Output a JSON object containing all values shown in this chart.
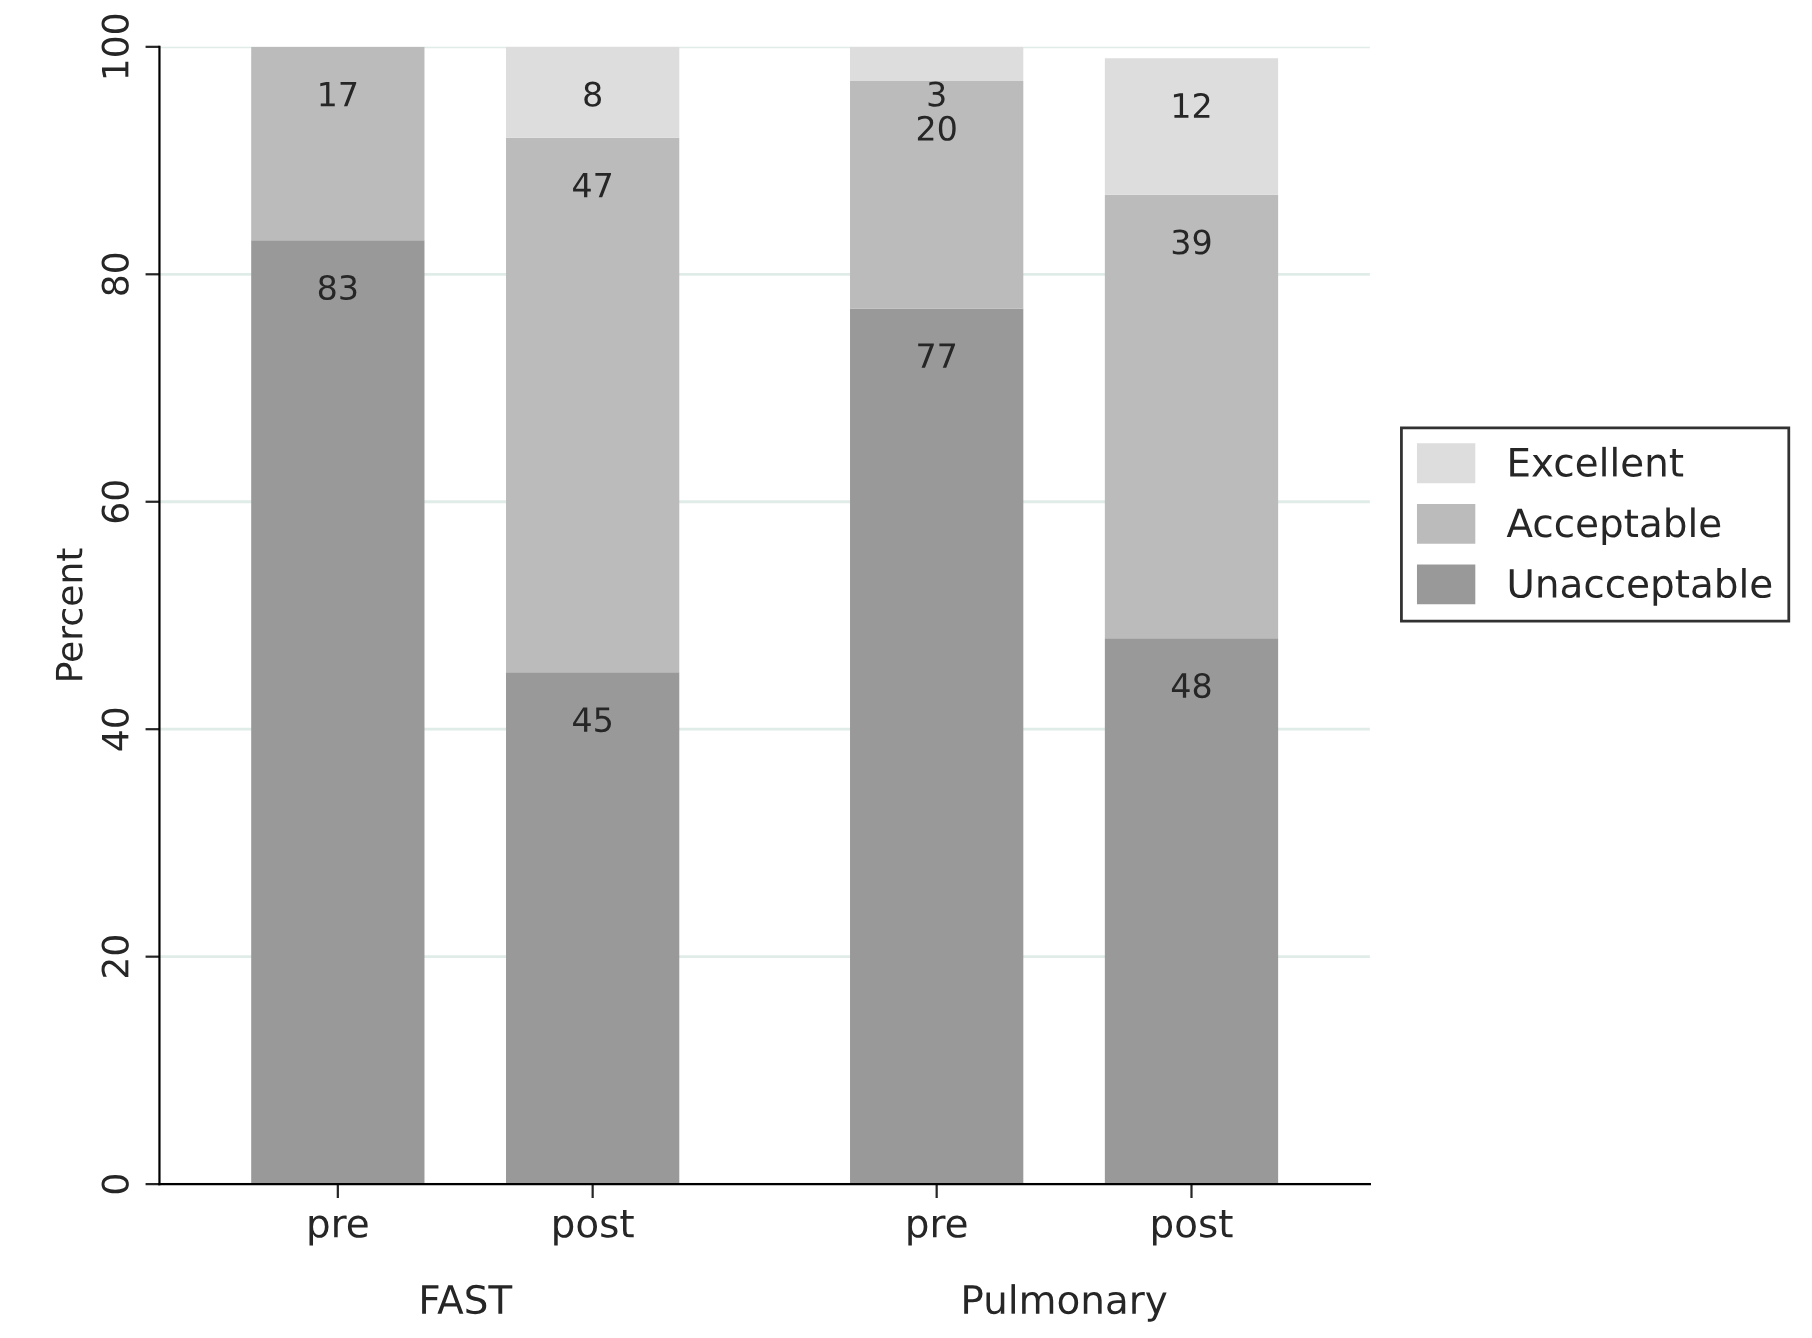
{
  "chart_data": {
    "type": "bar",
    "stacked": true,
    "ylabel": "Percent",
    "categories": [
      "pre",
      "post",
      "pre",
      "post"
    ],
    "series": [
      {
        "name": "Unacceptable",
        "color": "#999999",
        "values": [
          83,
          45,
          77,
          48
        ]
      },
      {
        "name": "Acceptable",
        "color": "#bbbbbb",
        "values": [
          17,
          47,
          20,
          39
        ]
      },
      {
        "name": "Excellent",
        "color": "#dddddd",
        "values": [
          null,
          8,
          3,
          12
        ]
      }
    ],
    "annotations": [
      "FAST",
      "Pulmonary"
    ],
    "ylim": [
      0,
      100
    ],
    "yticks": [
      0,
      20,
      40,
      60,
      80,
      100
    ],
    "grid": "y",
    "legend": "right",
    "data_labels": true
  }
}
